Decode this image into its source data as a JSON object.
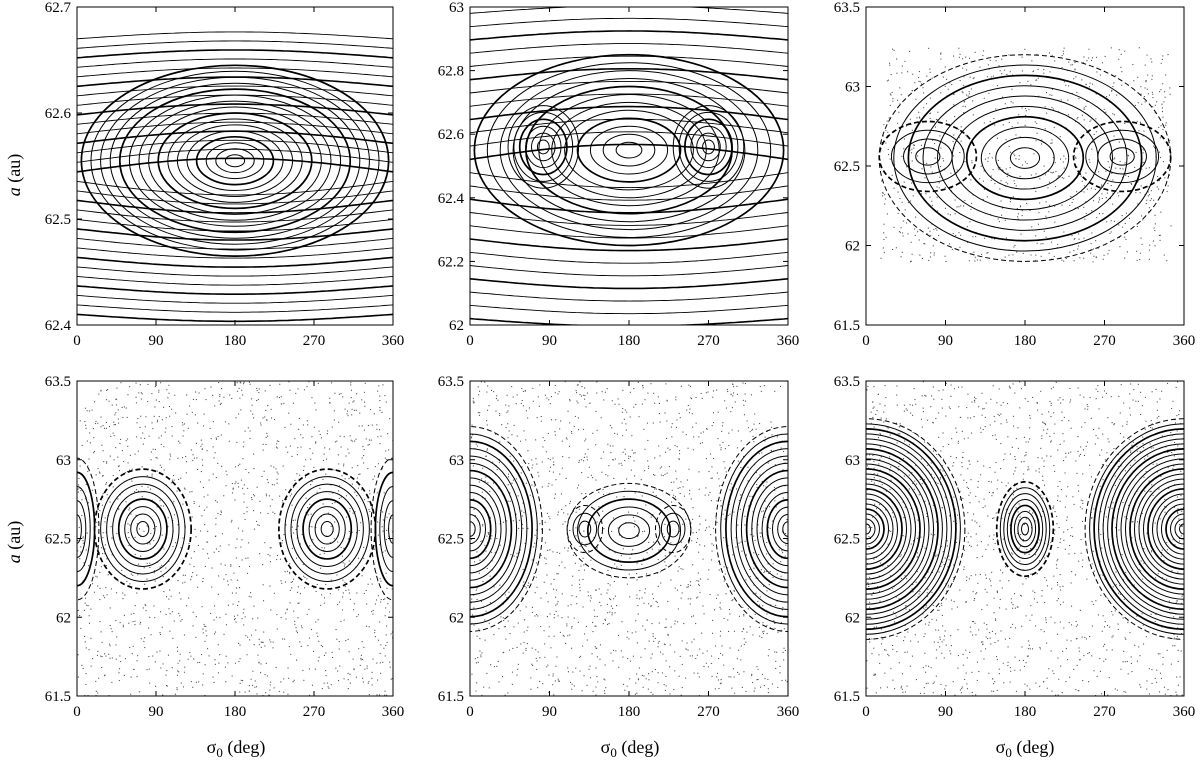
{
  "figure": {
    "ylabel_symbol": "a",
    "ylabel_unit": " (au)",
    "xlabel_symbol": "σ",
    "xlabel_sub": "0",
    "xlabel_unit": " (deg)"
  },
  "chart_data": [
    {
      "panel": "top-left",
      "type": "scatter",
      "xlim": [
        0,
        360
      ],
      "ylim": [
        62.4,
        62.7
      ],
      "xticks": [
        "0",
        "90",
        "180",
        "270",
        "360"
      ],
      "yticks": [
        "62.4",
        "62.5",
        "62.6",
        "62.7"
      ],
      "grid": false,
      "islands": [
        {
          "x": 180,
          "y": 62.555,
          "rx": 175,
          "ry": 0.09,
          "n": 16
        }
      ],
      "bands": {
        "count": 30,
        "y_from": 62.41,
        "y_to": 62.67
      },
      "scatter_points": 0,
      "chaos_box": null
    },
    {
      "panel": "top-middle",
      "type": "scatter",
      "xlim": [
        0,
        360
      ],
      "ylim": [
        62.0,
        63.0
      ],
      "xticks": [
        "0",
        "90",
        "180",
        "270",
        "360"
      ],
      "yticks": [
        "62",
        "62.2",
        "62.4",
        "62.6",
        "62.8",
        "63"
      ],
      "grid": false,
      "islands": [
        {
          "x": 83,
          "y": 62.56,
          "rx": 40,
          "ry": 0.13,
          "n": 6
        },
        {
          "x": 270,
          "y": 62.56,
          "rx": 40,
          "ry": 0.13,
          "n": 6
        },
        {
          "x": 180,
          "y": 62.55,
          "rx": 175,
          "ry": 0.3,
          "n": 12
        }
      ],
      "bands": {
        "count": 24,
        "y_from": 62.02,
        "y_to": 62.98
      },
      "scatter_points": 0,
      "chaos_box": null
    },
    {
      "panel": "top-right",
      "type": "scatter",
      "xlim": [
        0,
        360
      ],
      "ylim": [
        61.5,
        63.5
      ],
      "xticks": [
        "0",
        "90",
        "180",
        "270",
        "360"
      ],
      "yticks": [
        "61.5",
        "62",
        "62.5",
        "63",
        "63.5"
      ],
      "grid": false,
      "islands": [
        {
          "x": 70,
          "y": 62.56,
          "rx": 55,
          "ry": 0.22,
          "n": 4
        },
        {
          "x": 290,
          "y": 62.56,
          "rx": 55,
          "ry": 0.22,
          "n": 4
        },
        {
          "x": 180,
          "y": 62.55,
          "rx": 165,
          "ry": 0.65,
          "n": 10
        }
      ],
      "bands": {
        "count": 0,
        "y_from": 0,
        "y_to": 0
      },
      "scatter_points": 900,
      "chaos_box": [
        15,
        345,
        61.9,
        63.25
      ]
    },
    {
      "panel": "bottom-left",
      "type": "scatter",
      "xlim": [
        0,
        360
      ],
      "ylim": [
        61.5,
        63.5
      ],
      "xticks": [
        "0",
        "90",
        "180",
        "270",
        "360"
      ],
      "yticks": [
        "61.5",
        "62",
        "62.5",
        "63",
        "63.5"
      ],
      "grid": false,
      "islands": [
        {
          "x": 75,
          "y": 62.56,
          "rx": 55,
          "ry": 0.38,
          "n": 8
        },
        {
          "x": 285,
          "y": 62.56,
          "rx": 55,
          "ry": 0.38,
          "n": 8
        },
        {
          "x": 0,
          "y": 62.56,
          "rx": 25,
          "ry": 0.45,
          "n": 5
        },
        {
          "x": 360,
          "y": 62.56,
          "rx": 25,
          "ry": 0.45,
          "n": 5
        }
      ],
      "bands": {
        "count": 0,
        "y_from": 0,
        "y_to": 0
      },
      "scatter_points": 1500,
      "chaos_box": null
    },
    {
      "panel": "bottom-middle",
      "type": "scatter",
      "xlim": [
        0,
        360
      ],
      "ylim": [
        61.5,
        63.5
      ],
      "xticks": [
        "0",
        "90",
        "180",
        "270",
        "360"
      ],
      "yticks": [
        "61.5",
        "62",
        "62.5",
        "63",
        "63.5"
      ],
      "grid": false,
      "islands": [
        {
          "x": 130,
          "y": 62.56,
          "rx": 20,
          "ry": 0.15,
          "n": 3
        },
        {
          "x": 230,
          "y": 62.56,
          "rx": 20,
          "ry": 0.15,
          "n": 3
        },
        {
          "x": 180,
          "y": 62.55,
          "rx": 70,
          "ry": 0.3,
          "n": 6
        },
        {
          "x": 0,
          "y": 62.56,
          "rx": 82,
          "ry": 0.65,
          "n": 14
        },
        {
          "x": 360,
          "y": 62.56,
          "rx": 82,
          "ry": 0.65,
          "n": 14
        }
      ],
      "bands": {
        "count": 0,
        "y_from": 0,
        "y_to": 0
      },
      "scatter_points": 1500,
      "chaos_box": null
    },
    {
      "panel": "bottom-right",
      "type": "scatter",
      "xlim": [
        0,
        360
      ],
      "ylim": [
        61.5,
        63.5
      ],
      "xticks": [
        "0",
        "90",
        "180",
        "270",
        "360"
      ],
      "yticks": [
        "61.5",
        "62",
        "62.5",
        "63",
        "63.5"
      ],
      "grid": false,
      "islands": [
        {
          "x": 180,
          "y": 62.56,
          "rx": 32,
          "ry": 0.3,
          "n": 8
        },
        {
          "x": 0,
          "y": 62.56,
          "rx": 112,
          "ry": 0.7,
          "n": 22
        },
        {
          "x": 360,
          "y": 62.56,
          "rx": 112,
          "ry": 0.7,
          "n": 22
        }
      ],
      "bands": {
        "count": 0,
        "y_from": 0,
        "y_to": 0
      },
      "scatter_points": 1500,
      "chaos_box": null
    }
  ]
}
